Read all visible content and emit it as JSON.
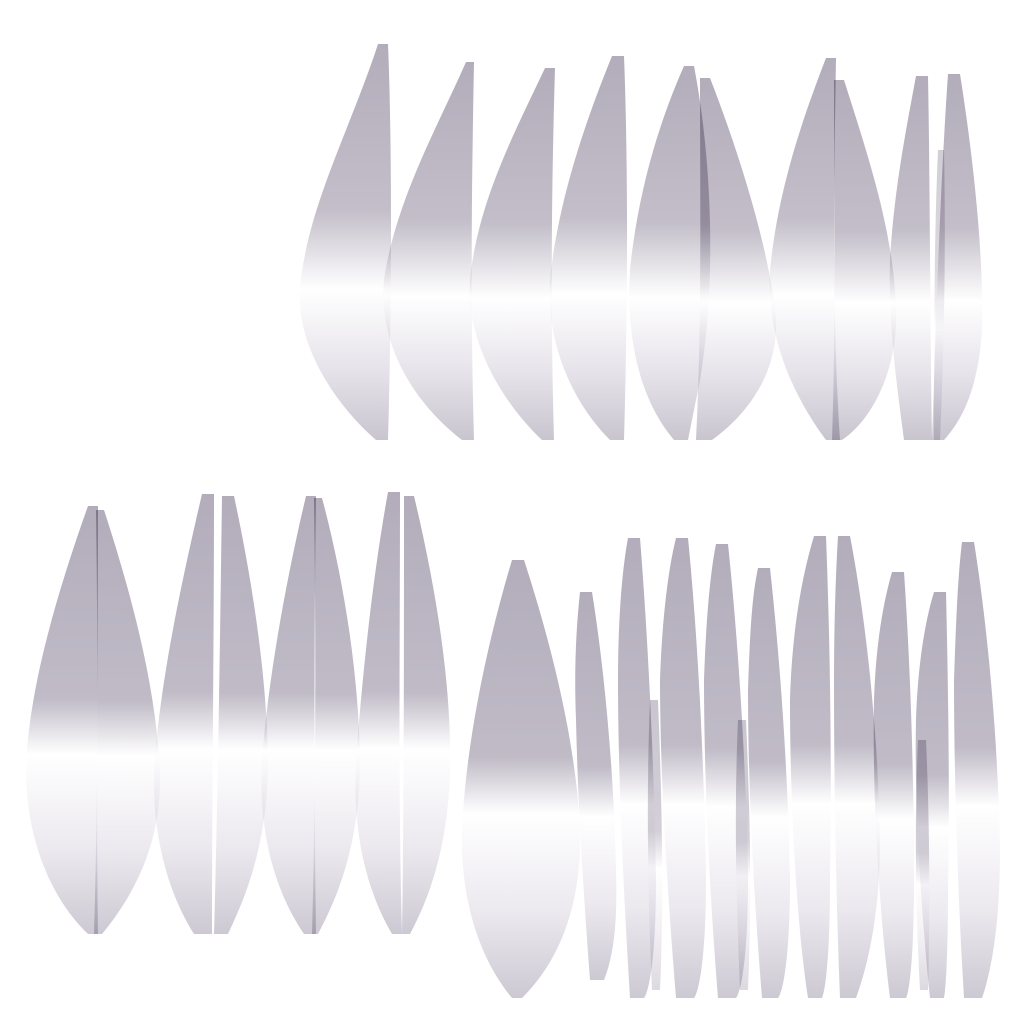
{
  "image": {
    "kind": "hair-strand-texture-atlas",
    "background_color": "#ffffff",
    "strand_color_dark": "#b3adbb",
    "strand_color_light": "#ffffff"
  },
  "groups": [
    {
      "name": "top-row-strands",
      "count": 11
    },
    {
      "name": "bottom-left-strands",
      "count": 8
    },
    {
      "name": "bottom-right-strands",
      "count": 14
    }
  ]
}
